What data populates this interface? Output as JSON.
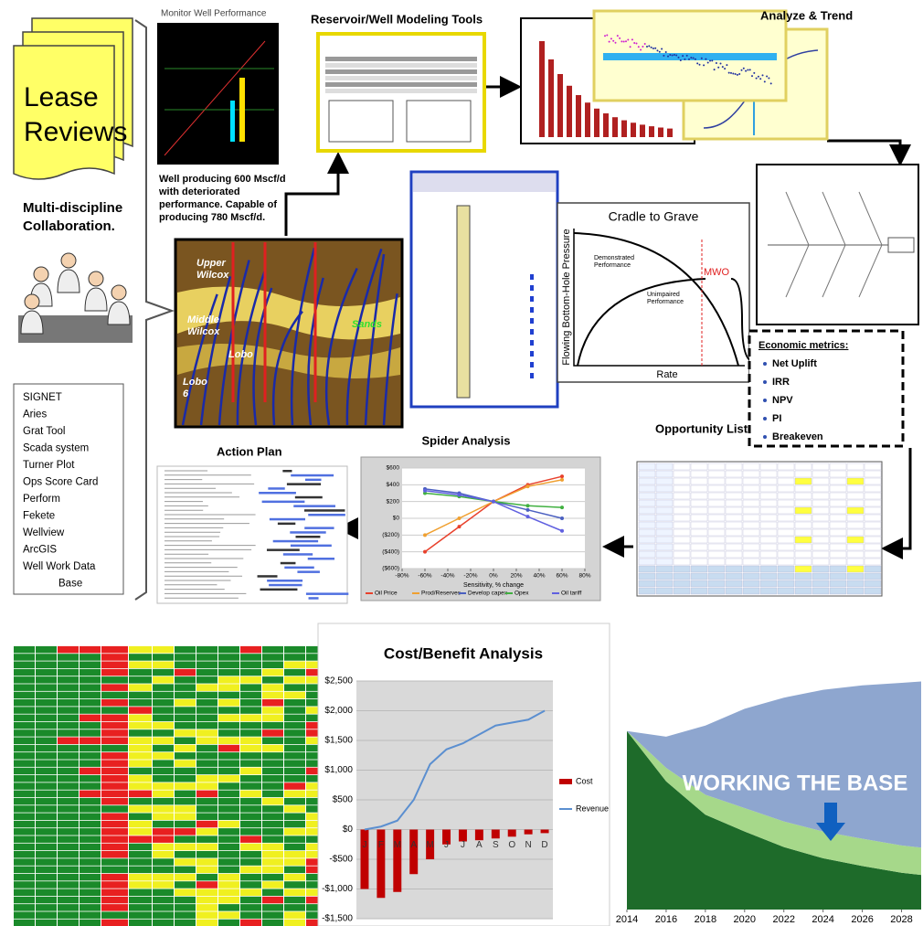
{
  "lease_reviews": {
    "lines": [
      "Lease",
      "Reviews"
    ]
  },
  "collaboration": {
    "lines": [
      "Multi-discipline",
      "Collaboration."
    ]
  },
  "monitor": {
    "title": "Monitor Well Performance",
    "note": [
      "Well producing 600 Mscf/d",
      "with deteriorated",
      "performance.  Capable of",
      "producing 780 Mscf/d."
    ]
  },
  "cross_section": {
    "labels": [
      [
        "Upper",
        "Wilcox"
      ],
      [
        "Middle",
        "Wilcox"
      ],
      [
        "Lobo"
      ],
      [
        "Lobo",
        "6"
      ],
      [
        "Sands"
      ]
    ]
  },
  "modeling": {
    "title": "Reservoir/Well  Modeling Tools"
  },
  "analyze": {
    "title": "Analyze & Trend"
  },
  "cradle": {
    "title": "Cradle to Grave",
    "y_label": "Flowing Bottom-Hole Pressure",
    "x_label": "Rate",
    "curves": [
      [
        "Demonstrated",
        "Performance"
      ],
      [
        "Unimpaired",
        "Performance"
      ]
    ],
    "marker": "MWO"
  },
  "economics": {
    "title": "Economic metrics:",
    "items": [
      "Net Uplift",
      "IRR",
      "NPV",
      "PI",
      "Breakeven"
    ]
  },
  "opportunity": {
    "title": "Opportunity List"
  },
  "action_plan": {
    "title": "Action Plan"
  },
  "tools": [
    "SIGNET",
    "Aries",
    "Grat Tool",
    "Scada system",
    "Turner Plot",
    "Ops Score Card",
    "Perform",
    "Fekete",
    "Wellview",
    "ArcGIS",
    "Well Work Data",
    "Base"
  ],
  "spider": {
    "type": "line",
    "title": "Spider Analysis",
    "x_label": "Sensitivity, % change",
    "x": [
      -60,
      -30,
      0,
      30,
      60
    ],
    "xlim": [
      -80,
      80
    ],
    "xticks": [
      {
        "value": -80,
        "label": "-80%"
      },
      {
        "value": -60,
        "label": "-60%"
      },
      {
        "value": -40,
        "label": "-40%"
      },
      {
        "value": -20,
        "label": "-20%"
      },
      {
        "value": 0,
        "label": "0%"
      },
      {
        "value": 20,
        "label": "20%"
      },
      {
        "value": 40,
        "label": "40%"
      },
      {
        "value": 60,
        "label": "60%"
      },
      {
        "value": 80,
        "label": "80%"
      }
    ],
    "ylim": [
      -600,
      600
    ],
    "yticks": [
      {
        "value": 600,
        "label": "$600"
      },
      {
        "value": 400,
        "label": "$400"
      },
      {
        "value": 200,
        "label": "$200"
      },
      {
        "value": 0,
        "label": "$0"
      },
      {
        "value": -200,
        "label": "($200)"
      },
      {
        "value": -400,
        "label": "($400)"
      },
      {
        "value": -600,
        "label": "($600)"
      }
    ],
    "series": [
      {
        "name": "Oil Price",
        "color": "#e8412c",
        "values": [
          -400,
          -100,
          200,
          400,
          500
        ]
      },
      {
        "name": "Prod/Reserves",
        "color": "#f0a030",
        "values": [
          -200,
          0,
          200,
          380,
          460
        ]
      },
      {
        "name": "Develop capex",
        "color": "#4a5fc0",
        "values": [
          350,
          300,
          200,
          100,
          0
        ]
      },
      {
        "name": "Opex",
        "color": "#40b040",
        "values": [
          300,
          260,
          200,
          150,
          130
        ]
      },
      {
        "name": "Oil tariff",
        "color": "#6060e0",
        "values": [
          330,
          280,
          200,
          20,
          -150
        ]
      }
    ]
  },
  "cost_benefit": {
    "type": "bar",
    "title": "Cost/Benefit Analysis",
    "categories": [
      "J",
      "F",
      "M",
      "A",
      "M",
      "J",
      "J",
      "A",
      "S",
      "O",
      "N",
      "D"
    ],
    "ylim": [
      -1500,
      2500
    ],
    "yticks": [
      {
        "value": 2500,
        "label": "$2,500"
      },
      {
        "value": 2000,
        "label": "$2,000"
      },
      {
        "value": 1500,
        "label": "$1,500"
      },
      {
        "value": 1000,
        "label": "$1,000"
      },
      {
        "value": 500,
        "label": "$500"
      },
      {
        "value": 0,
        "label": "$0"
      },
      {
        "value": -500,
        "label": "-$500"
      },
      {
        "value": -1000,
        "label": "-$1,000"
      },
      {
        "value": -1500,
        "label": "-$1,500"
      }
    ],
    "series": [
      {
        "name": "Cost",
        "color": "#c00000",
        "values": [
          -1000,
          -1150,
          -1050,
          -750,
          -500,
          -250,
          -200,
          -180,
          -150,
          -120,
          -80,
          -60
        ]
      },
      {
        "name": "Revenue",
        "color": "#5b8fd0",
        "values": [
          0,
          50,
          150,
          500,
          1100,
          1350,
          1450,
          1600,
          1750,
          1800,
          1850,
          2000
        ]
      }
    ]
  },
  "working_base": {
    "type": "area",
    "annotation": "WORKING THE BASE",
    "x": [
      2014,
      2016,
      2018,
      2020,
      2022,
      2024,
      2026,
      2028,
      2029
    ],
    "xlim": [
      2014,
      2029
    ],
    "xticks": [
      2014,
      2016,
      2018,
      2020,
      2022,
      2024,
      2026,
      2028
    ],
    "ylim": [
      0,
      2500
    ],
    "series": [
      {
        "color": "#1e6b2a",
        "values": [
          1600,
          1150,
          850,
          700,
          560,
          460,
          390,
          330,
          310
        ]
      },
      {
        "color": "#a6d88a",
        "values": [
          0,
          120,
          180,
          210,
          230,
          240,
          245,
          245,
          245
        ]
      },
      {
        "color": "#8ea6cf",
        "values": [
          0,
          280,
          620,
          890,
          1110,
          1270,
          1375,
          1458,
          1490
        ]
      }
    ]
  }
}
